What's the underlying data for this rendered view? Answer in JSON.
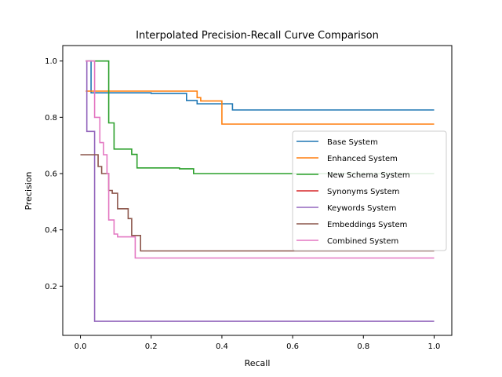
{
  "chart_data": {
    "type": "line",
    "step": true,
    "title": "Interpolated Precision-Recall Curve Comparison",
    "xlabel": "Recall",
    "ylabel": "Precision",
    "xlim": [
      -0.05,
      1.05
    ],
    "ylim": [
      0.025,
      1.055
    ],
    "xticks": [
      "0.0",
      "0.2",
      "0.4",
      "0.6",
      "0.8",
      "1.0"
    ],
    "yticks": [
      "0.2",
      "0.4",
      "0.6",
      "0.8",
      "1.0"
    ],
    "grid": false,
    "legend_position": "center-right",
    "series": [
      {
        "name": "Base System",
        "color": "#1f77b4",
        "points": [
          [
            0.02,
            1.0
          ],
          [
            0.03,
            1.0
          ],
          [
            0.03,
            0.887
          ],
          [
            0.2,
            0.887
          ],
          [
            0.2,
            0.885
          ],
          [
            0.3,
            0.885
          ],
          [
            0.3,
            0.86
          ],
          [
            0.33,
            0.86
          ],
          [
            0.33,
            0.848
          ],
          [
            0.43,
            0.848
          ],
          [
            0.43,
            0.826
          ],
          [
            1.0,
            0.826
          ]
        ]
      },
      {
        "name": "Enhanced System",
        "color": "#ff7f0e",
        "points": [
          [
            0.015,
            0.893
          ],
          [
            0.33,
            0.893
          ],
          [
            0.33,
            0.87
          ],
          [
            0.34,
            0.87
          ],
          [
            0.34,
            0.858
          ],
          [
            0.4,
            0.858
          ],
          [
            0.4,
            0.776
          ],
          [
            1.0,
            0.776
          ]
        ]
      },
      {
        "name": "New Schema System",
        "color": "#2ca02c",
        "points": [
          [
            0.015,
            1.0
          ],
          [
            0.08,
            1.0
          ],
          [
            0.08,
            0.78
          ],
          [
            0.095,
            0.78
          ],
          [
            0.095,
            0.687
          ],
          [
            0.145,
            0.687
          ],
          [
            0.145,
            0.668
          ],
          [
            0.16,
            0.668
          ],
          [
            0.16,
            0.62
          ],
          [
            0.28,
            0.62
          ],
          [
            0.28,
            0.617
          ],
          [
            0.32,
            0.617
          ],
          [
            0.32,
            0.6
          ],
          [
            1.0,
            0.6
          ]
        ]
      },
      {
        "name": "Synonyms System",
        "color": "#d62728",
        "points": []
      },
      {
        "name": "Keywords System",
        "color": "#9467bd",
        "points": [
          [
            0.015,
            1.0
          ],
          [
            0.018,
            1.0
          ],
          [
            0.018,
            0.75
          ],
          [
            0.04,
            0.75
          ],
          [
            0.04,
            0.075
          ],
          [
            1.0,
            0.075
          ]
        ]
      },
      {
        "name": "Embeddings System",
        "color": "#8c564b",
        "points": [
          [
            0.0,
            0.667
          ],
          [
            0.05,
            0.667
          ],
          [
            0.05,
            0.625
          ],
          [
            0.06,
            0.625
          ],
          [
            0.06,
            0.6
          ],
          [
            0.08,
            0.6
          ],
          [
            0.08,
            0.54
          ],
          [
            0.09,
            0.54
          ],
          [
            0.09,
            0.53
          ],
          [
            0.105,
            0.53
          ],
          [
            0.105,
            0.475
          ],
          [
            0.135,
            0.475
          ],
          [
            0.135,
            0.44
          ],
          [
            0.145,
            0.44
          ],
          [
            0.145,
            0.38
          ],
          [
            0.17,
            0.38
          ],
          [
            0.17,
            0.325
          ],
          [
            1.0,
            0.325
          ]
        ]
      },
      {
        "name": "Combined System",
        "color": "#e377c2",
        "points": [
          [
            0.015,
            1.0
          ],
          [
            0.04,
            1.0
          ],
          [
            0.04,
            0.8
          ],
          [
            0.055,
            0.8
          ],
          [
            0.055,
            0.71
          ],
          [
            0.065,
            0.71
          ],
          [
            0.065,
            0.667
          ],
          [
            0.075,
            0.667
          ],
          [
            0.075,
            0.6
          ],
          [
            0.08,
            0.6
          ],
          [
            0.08,
            0.435
          ],
          [
            0.095,
            0.435
          ],
          [
            0.095,
            0.385
          ],
          [
            0.105,
            0.385
          ],
          [
            0.105,
            0.375
          ],
          [
            0.155,
            0.375
          ],
          [
            0.155,
            0.3
          ],
          [
            1.0,
            0.3
          ]
        ]
      }
    ]
  }
}
